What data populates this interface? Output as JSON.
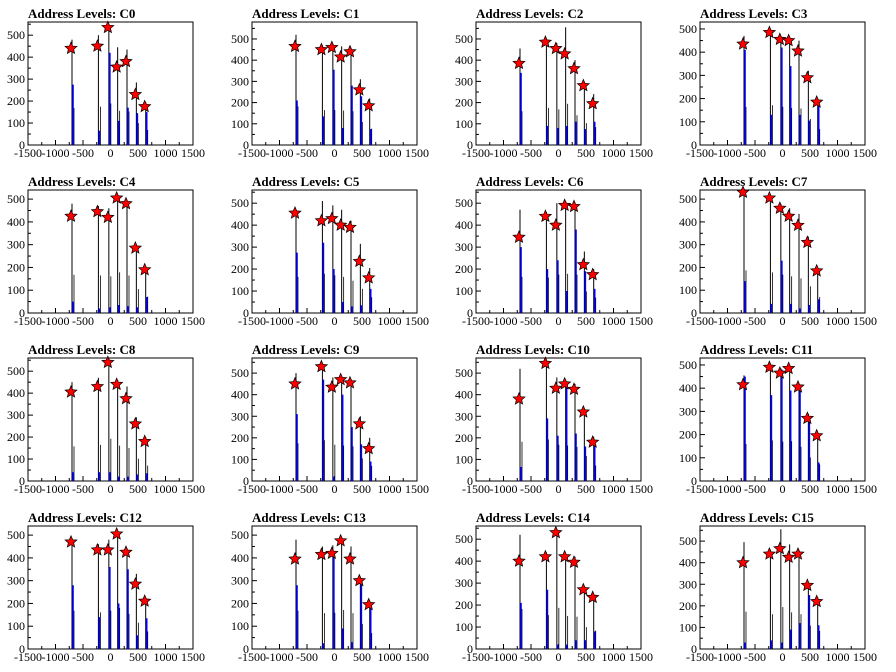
{
  "colors": {
    "histogram": "#0000ff",
    "peak_outline": "#000000",
    "star_fill": "#ff0000",
    "axes": "#000000",
    "background": "#ffffff"
  },
  "x_range": [
    -1500,
    1500
  ],
  "x_ticks": [
    -1500,
    -1000,
    -500,
    0,
    500,
    1000,
    1500
  ],
  "x_tick_labels": [
    "-1500",
    "-1000",
    "-500",
    "0",
    "500",
    "1000",
    "1500"
  ],
  "chart_data": [
    {
      "type": "bar",
      "title": "Address Levels: C0",
      "ylim": [
        0,
        560
      ],
      "y_ticks": [
        0,
        100,
        200,
        300,
        400,
        500
      ],
      "peaks": [
        {
          "x": -700,
          "outline": 480,
          "blue": 275,
          "star": 440
        },
        {
          "x": -220,
          "outline": 500,
          "blue": 65,
          "star": 450
        },
        {
          "x": -30,
          "outline": 540,
          "blue": 420,
          "star": 535
        },
        {
          "x": 130,
          "outline": 445,
          "blue": 110,
          "star": 355
        },
        {
          "x": 300,
          "outline": 435,
          "blue": 170,
          "star": 380
        },
        {
          "x": 470,
          "outline": 285,
          "blue": 145,
          "star": 230
        },
        {
          "x": 640,
          "outline": 195,
          "blue": 150,
          "star": 175
        }
      ]
    },
    {
      "type": "bar",
      "title": "Address Levels: C1",
      "ylim": [
        0,
        580
      ],
      "y_ticks": [
        0,
        100,
        200,
        300,
        400,
        500
      ],
      "peaks": [
        {
          "x": -700,
          "outline": 520,
          "blue": 210,
          "star": 465
        },
        {
          "x": -220,
          "outline": 470,
          "blue": 135,
          "star": 450
        },
        {
          "x": -30,
          "outline": 470,
          "blue": 355,
          "star": 460
        },
        {
          "x": 130,
          "outline": 465,
          "blue": 80,
          "star": 415
        },
        {
          "x": 300,
          "outline": 455,
          "blue": 280,
          "star": 440
        },
        {
          "x": 470,
          "outline": 310,
          "blue": 230,
          "star": 260
        },
        {
          "x": 640,
          "outline": 220,
          "blue": 75,
          "star": 185
        }
      ]
    },
    {
      "type": "bar",
      "title": "Address Levels: C2",
      "ylim": [
        0,
        580
      ],
      "y_ticks": [
        0,
        100,
        200,
        300,
        400,
        500
      ],
      "peaks": [
        {
          "x": -700,
          "outline": 455,
          "blue": 340,
          "star": 385
        },
        {
          "x": -220,
          "outline": 500,
          "blue": 90,
          "star": 485
        },
        {
          "x": -30,
          "outline": 480,
          "blue": 80,
          "star": 455
        },
        {
          "x": 130,
          "outline": 555,
          "blue": 90,
          "star": 430
        },
        {
          "x": 300,
          "outline": 400,
          "blue": 110,
          "star": 360
        },
        {
          "x": 470,
          "outline": 295,
          "blue": 75,
          "star": 280
        },
        {
          "x": 640,
          "outline": 240,
          "blue": 110,
          "star": 195
        }
      ]
    },
    {
      "type": "bar",
      "title": "Address Levels: C3",
      "ylim": [
        0,
        530
      ],
      "y_ticks": [
        0,
        100,
        200,
        300,
        400,
        500
      ],
      "peaks": [
        {
          "x": -700,
          "outline": 470,
          "blue": 410,
          "star": 435
        },
        {
          "x": -220,
          "outline": 490,
          "blue": 130,
          "star": 485
        },
        {
          "x": -30,
          "outline": 470,
          "blue": 420,
          "star": 455
        },
        {
          "x": 130,
          "outline": 455,
          "blue": 340,
          "star": 450
        },
        {
          "x": 300,
          "outline": 450,
          "blue": 130,
          "star": 405
        },
        {
          "x": 470,
          "outline": 320,
          "blue": 105,
          "star": 290
        },
        {
          "x": 640,
          "outline": 195,
          "blue": 170,
          "star": 185
        }
      ]
    },
    {
      "type": "bar",
      "title": "Address Levels: C4",
      "ylim": [
        0,
        540
      ],
      "y_ticks": [
        0,
        100,
        200,
        300,
        400,
        500
      ],
      "peaks": [
        {
          "x": -700,
          "outline": 480,
          "blue": 50,
          "star": 425
        },
        {
          "x": -220,
          "outline": 470,
          "blue": 20,
          "star": 445
        },
        {
          "x": -30,
          "outline": 460,
          "blue": 25,
          "star": 420
        },
        {
          "x": 130,
          "outline": 510,
          "blue": 35,
          "star": 505
        },
        {
          "x": 300,
          "outline": 470,
          "blue": 30,
          "star": 480
        },
        {
          "x": 470,
          "outline": 300,
          "blue": 25,
          "star": 285
        },
        {
          "x": 640,
          "outline": 205,
          "blue": 70,
          "star": 190
        }
      ]
    },
    {
      "type": "bar",
      "title": "Address Levels: C5",
      "ylim": [
        0,
        560
      ],
      "y_ticks": [
        0,
        100,
        200,
        300,
        400,
        500
      ],
      "peaks": [
        {
          "x": -700,
          "outline": 470,
          "blue": 275,
          "star": 455
        },
        {
          "x": -220,
          "outline": 510,
          "blue": 320,
          "star": 420
        },
        {
          "x": -30,
          "outline": 490,
          "blue": 200,
          "star": 430
        },
        {
          "x": 130,
          "outline": 470,
          "blue": 50,
          "star": 400
        },
        {
          "x": 300,
          "outline": 420,
          "blue": 30,
          "star": 390
        },
        {
          "x": 470,
          "outline": 315,
          "blue": 35,
          "star": 235
        },
        {
          "x": 640,
          "outline": 205,
          "blue": 110,
          "star": 160
        }
      ]
    },
    {
      "type": "bar",
      "title": "Address Levels: C6",
      "ylim": [
        0,
        560
      ],
      "y_ticks": [
        0,
        100,
        200,
        300,
        400,
        500
      ],
      "peaks": [
        {
          "x": -700,
          "outline": 470,
          "blue": 300,
          "star": 345
        },
        {
          "x": -220,
          "outline": 460,
          "blue": 200,
          "star": 440
        },
        {
          "x": -30,
          "outline": 500,
          "blue": 240,
          "star": 400
        },
        {
          "x": 130,
          "outline": 510,
          "blue": 100,
          "star": 490
        },
        {
          "x": 300,
          "outline": 500,
          "blue": 380,
          "star": 485
        },
        {
          "x": 470,
          "outline": 280,
          "blue": 190,
          "star": 220
        },
        {
          "x": 640,
          "outline": 200,
          "blue": 110,
          "star": 175
        }
      ]
    },
    {
      "type": "bar",
      "title": "Address Levels: C7",
      "ylim": [
        0,
        540
      ],
      "y_ticks": [
        0,
        100,
        200,
        300,
        400,
        500
      ],
      "peaks": [
        {
          "x": -700,
          "outline": 535,
          "blue": 140,
          "star": 530
        },
        {
          "x": -220,
          "outline": 510,
          "blue": 40,
          "star": 505
        },
        {
          "x": -30,
          "outline": 480,
          "blue": 230,
          "star": 460
        },
        {
          "x": 130,
          "outline": 460,
          "blue": 40,
          "star": 425
        },
        {
          "x": 300,
          "outline": 435,
          "blue": 20,
          "star": 385
        },
        {
          "x": 470,
          "outline": 335,
          "blue": 35,
          "star": 310
        },
        {
          "x": 640,
          "outline": 200,
          "blue": 60,
          "star": 185
        }
      ]
    },
    {
      "type": "bar",
      "title": "Address Levels: C8",
      "ylim": [
        0,
        560
      ],
      "y_ticks": [
        0,
        100,
        200,
        300,
        400,
        500
      ],
      "peaks": [
        {
          "x": -700,
          "outline": 450,
          "blue": 40,
          "star": 405
        },
        {
          "x": -220,
          "outline": 470,
          "blue": 40,
          "star": 430
        },
        {
          "x": -30,
          "outline": 550,
          "blue": 40,
          "star": 540
        },
        {
          "x": 130,
          "outline": 460,
          "blue": 20,
          "star": 440
        },
        {
          "x": 300,
          "outline": 430,
          "blue": 20,
          "star": 375
        },
        {
          "x": 470,
          "outline": 290,
          "blue": 30,
          "star": 260
        },
        {
          "x": 640,
          "outline": 200,
          "blue": 35,
          "star": 180
        }
      ]
    },
    {
      "type": "bar",
      "title": "Address Levels: C9",
      "ylim": [
        0,
        570
      ],
      "y_ticks": [
        0,
        100,
        200,
        300,
        400,
        500
      ],
      "peaks": [
        {
          "x": -700,
          "outline": 500,
          "blue": 310,
          "star": 450
        },
        {
          "x": -220,
          "outline": 540,
          "blue": 470,
          "star": 530
        },
        {
          "x": -30,
          "outline": 480,
          "blue": 20,
          "star": 435
        },
        {
          "x": 130,
          "outline": 470,
          "blue": 400,
          "star": 470
        },
        {
          "x": 300,
          "outline": 460,
          "blue": 250,
          "star": 455
        },
        {
          "x": 470,
          "outline": 300,
          "blue": 170,
          "star": 265
        },
        {
          "x": 640,
          "outline": 200,
          "blue": 90,
          "star": 150
        }
      ]
    },
    {
      "type": "bar",
      "title": "Address Levels: C10",
      "ylim": [
        0,
        570
      ],
      "y_ticks": [
        0,
        100,
        200,
        300,
        400,
        500
      ],
      "peaks": [
        {
          "x": -700,
          "outline": 520,
          "blue": 65,
          "star": 380
        },
        {
          "x": -220,
          "outline": 550,
          "blue": 290,
          "star": 545
        },
        {
          "x": -30,
          "outline": 480,
          "blue": 210,
          "star": 430
        },
        {
          "x": 130,
          "outline": 470,
          "blue": 460,
          "star": 450
        },
        {
          "x": 300,
          "outline": 450,
          "blue": 220,
          "star": 425
        },
        {
          "x": 470,
          "outline": 330,
          "blue": 160,
          "star": 320
        },
        {
          "x": 640,
          "outline": 205,
          "blue": 165,
          "star": 180
        }
      ]
    },
    {
      "type": "bar",
      "title": "Address Levels: C11",
      "ylim": [
        0,
        530
      ],
      "y_ticks": [
        0,
        100,
        200,
        300,
        400,
        500
      ],
      "peaks": [
        {
          "x": -700,
          "outline": 455,
          "blue": 450,
          "star": 415
        },
        {
          "x": -220,
          "outline": 500,
          "blue": 370,
          "star": 490
        },
        {
          "x": -30,
          "outline": 485,
          "blue": 480,
          "star": 465
        },
        {
          "x": 130,
          "outline": 490,
          "blue": 390,
          "star": 485
        },
        {
          "x": 300,
          "outline": 420,
          "blue": 410,
          "star": 405
        },
        {
          "x": 470,
          "outline": 290,
          "blue": 280,
          "star": 270
        },
        {
          "x": 640,
          "outline": 205,
          "blue": 80,
          "star": 195
        }
      ]
    },
    {
      "type": "bar",
      "title": "Address Levels: C12",
      "ylim": [
        0,
        540
      ],
      "y_ticks": [
        0,
        100,
        200,
        300,
        400,
        500
      ],
      "peaks": [
        {
          "x": -700,
          "outline": 480,
          "blue": 280,
          "star": 470
        },
        {
          "x": -220,
          "outline": 460,
          "blue": 140,
          "star": 435
        },
        {
          "x": -30,
          "outline": 480,
          "blue": 360,
          "star": 435
        },
        {
          "x": 130,
          "outline": 515,
          "blue": 200,
          "star": 505
        },
        {
          "x": 300,
          "outline": 440,
          "blue": 350,
          "star": 425
        },
        {
          "x": 470,
          "outline": 330,
          "blue": 60,
          "star": 285
        },
        {
          "x": 640,
          "outline": 220,
          "blue": 135,
          "star": 210
        }
      ]
    },
    {
      "type": "bar",
      "title": "Address Levels: C13",
      "ylim": [
        0,
        540
      ],
      "y_ticks": [
        0,
        100,
        200,
        300,
        400,
        500
      ],
      "peaks": [
        {
          "x": -700,
          "outline": 480,
          "blue": 280,
          "star": 395
        },
        {
          "x": -220,
          "outline": 450,
          "blue": 25,
          "star": 415
        },
        {
          "x": -30,
          "outline": 455,
          "blue": 410,
          "star": 420
        },
        {
          "x": 130,
          "outline": 490,
          "blue": 90,
          "star": 475
        },
        {
          "x": 300,
          "outline": 450,
          "blue": 30,
          "star": 395
        },
        {
          "x": 470,
          "outline": 315,
          "blue": 290,
          "star": 300
        },
        {
          "x": 640,
          "outline": 200,
          "blue": 180,
          "star": 195
        }
      ]
    },
    {
      "type": "bar",
      "title": "Address Levels: C14",
      "ylim": [
        0,
        560
      ],
      "y_ticks": [
        0,
        100,
        200,
        300,
        400,
        500
      ],
      "peaks": [
        {
          "x": -700,
          "outline": 520,
          "blue": 210,
          "star": 400
        },
        {
          "x": -220,
          "outline": 440,
          "blue": 270,
          "star": 420
        },
        {
          "x": -30,
          "outline": 535,
          "blue": 20,
          "star": 530
        },
        {
          "x": 130,
          "outline": 430,
          "blue": 20,
          "star": 420
        },
        {
          "x": 300,
          "outline": 420,
          "blue": 40,
          "star": 395
        },
        {
          "x": 470,
          "outline": 285,
          "blue": 40,
          "star": 270
        },
        {
          "x": 640,
          "outline": 240,
          "blue": 80,
          "star": 235
        }
      ]
    },
    {
      "type": "bar",
      "title": "Address Levels: C15",
      "ylim": [
        0,
        570
      ],
      "y_ticks": [
        0,
        100,
        200,
        300,
        400,
        500
      ],
      "peaks": [
        {
          "x": -700,
          "outline": 495,
          "blue": 30,
          "star": 400
        },
        {
          "x": -220,
          "outline": 460,
          "blue": 40,
          "star": 440
        },
        {
          "x": -30,
          "outline": 555,
          "blue": 30,
          "star": 465
        },
        {
          "x": 130,
          "outline": 485,
          "blue": 90,
          "star": 425
        },
        {
          "x": 300,
          "outline": 460,
          "blue": 120,
          "star": 440
        },
        {
          "x": 470,
          "outline": 310,
          "blue": 250,
          "star": 295
        },
        {
          "x": 640,
          "outline": 240,
          "blue": 110,
          "star": 220
        }
      ]
    }
  ]
}
